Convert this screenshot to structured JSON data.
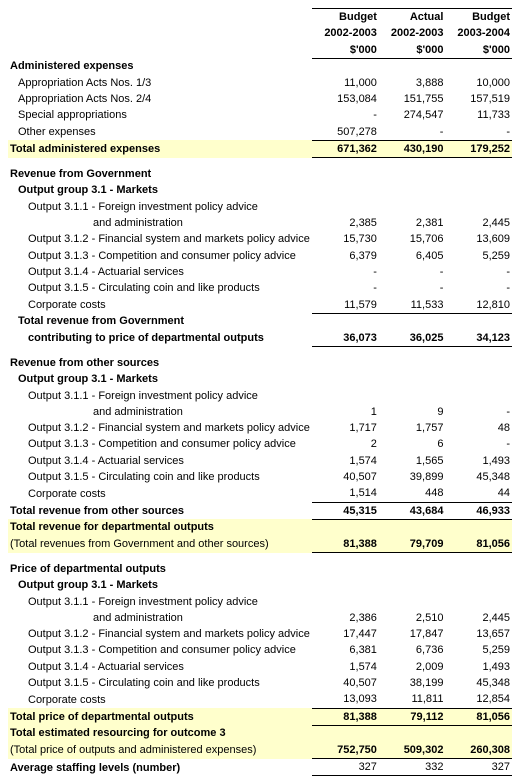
{
  "headers": {
    "c1l1": "Budget",
    "c1l2": "2002-2003",
    "c1l3": "$'000",
    "c2l1": "Actual",
    "c2l2": "2002-2003",
    "c2l3": "$'000",
    "c3l1": "Budget",
    "c3l2": "2003-2004",
    "c3l3": "$'000"
  },
  "s1": {
    "title": "Administered expenses",
    "r1": {
      "l": "Appropriation Acts Nos. 1/3",
      "v": [
        "11,000",
        "3,888",
        "10,000"
      ]
    },
    "r2": {
      "l": "Appropriation Acts Nos. 2/4",
      "v": [
        "153,084",
        "151,755",
        "157,519"
      ]
    },
    "r3": {
      "l": "Special appropriations",
      "v": [
        "-",
        "274,547",
        "11,733"
      ]
    },
    "r4": {
      "l": "Other expenses",
      "v": [
        "507,278",
        "-",
        "-"
      ]
    },
    "tot": {
      "l": "Total administered expenses",
      "v": [
        "671,362",
        "430,190",
        "179,252"
      ]
    }
  },
  "s2": {
    "title": "Revenue from Government",
    "group": "Output group 3.1 - Markets",
    "r1a": {
      "l": "Output 3.1.1 - Foreign investment policy advice"
    },
    "r1b": {
      "l": "and administration",
      "v": [
        "2,385",
        "2,381",
        "2,445"
      ]
    },
    "r2": {
      "l": "Output 3.1.2 - Financial system and markets policy advice",
      "v": [
        "15,730",
        "15,706",
        "13,609"
      ]
    },
    "r3": {
      "l": "Output 3.1.3 - Competition and consumer policy advice",
      "v": [
        "6,379",
        "6,405",
        "5,259"
      ]
    },
    "r4": {
      "l": "Output 3.1.4 - Actuarial services",
      "v": [
        "-",
        "-",
        "-"
      ]
    },
    "r5": {
      "l": "Output 3.1.5 - Circulating coin and like products",
      "v": [
        "-",
        "-",
        "-"
      ]
    },
    "r6": {
      "l": "Corporate costs",
      "v": [
        "11,579",
        "11,533",
        "12,810"
      ]
    },
    "tot1": {
      "l": "Total revenue from Government"
    },
    "tot2": {
      "l": "contributing to price of departmental outputs",
      "v": [
        "36,073",
        "36,025",
        "34,123"
      ]
    }
  },
  "s3": {
    "title": "Revenue from other sources",
    "group": "Output group 3.1 - Markets",
    "r1a": {
      "l": "Output 3.1.1 - Foreign investment policy advice"
    },
    "r1b": {
      "l": "and administration",
      "v": [
        "1",
        "9",
        "-"
      ]
    },
    "r2": {
      "l": "Output 3.1.2 - Financial system and markets policy advice",
      "v": [
        "1,717",
        "1,757",
        "48"
      ]
    },
    "r3": {
      "l": "Output 3.1.3 - Competition and consumer policy advice",
      "v": [
        "2",
        "6",
        "-"
      ]
    },
    "r4": {
      "l": "Output 3.1.4 - Actuarial services",
      "v": [
        "1,574",
        "1,565",
        "1,493"
      ]
    },
    "r5": {
      "l": "Output 3.1.5 - Circulating coin and like products",
      "v": [
        "40,507",
        "39,899",
        "45,348"
      ]
    },
    "r6": {
      "l": "Corporate costs",
      "v": [
        "1,514",
        "448",
        "44"
      ]
    },
    "tot": {
      "l": "Total revenue from other sources",
      "v": [
        "45,315",
        "43,684",
        "46,933"
      ]
    },
    "grand1": {
      "l": "Total revenue for departmental outputs"
    },
    "grand2": {
      "l": "(Total revenues from Government and other sources)",
      "v": [
        "81,388",
        "79,709",
        "81,056"
      ]
    }
  },
  "s4": {
    "title": "Price of departmental outputs",
    "group": "Output group 3.1 - Markets",
    "r1a": {
      "l": "Output 3.1.1 - Foreign investment policy advice"
    },
    "r1b": {
      "l": "and administration",
      "v": [
        "2,386",
        "2,510",
        "2,445"
      ]
    },
    "r2": {
      "l": "Output 3.1.2 - Financial system and markets policy advice",
      "v": [
        "17,447",
        "17,847",
        "13,657"
      ]
    },
    "r3": {
      "l": "Output 3.1.3 - Competition and consumer policy advice",
      "v": [
        "6,381",
        "6,736",
        "5,259"
      ]
    },
    "r4": {
      "l": "Output 3.1.4 - Actuarial services",
      "v": [
        "1,574",
        "2,009",
        "1,493"
      ]
    },
    "r5": {
      "l": "Output 3.1.5 - Circulating coin and like products",
      "v": [
        "40,507",
        "38,199",
        "45,348"
      ]
    },
    "r6": {
      "l": "Corporate costs",
      "v": [
        "13,093",
        "11,811",
        "12,854"
      ]
    },
    "tot": {
      "l": "Total price of departmental outputs",
      "v": [
        "81,388",
        "79,112",
        "81,056"
      ]
    },
    "grand1": {
      "l": "Total estimated resourcing for outcome 3"
    },
    "grand2": {
      "l": "(Total price of outputs and administered expenses)",
      "v": [
        "752,750",
        "509,302",
        "260,308"
      ]
    }
  },
  "staff": {
    "l": "Average staffing levels (number)",
    "v": [
      "327",
      "332",
      "327"
    ]
  }
}
